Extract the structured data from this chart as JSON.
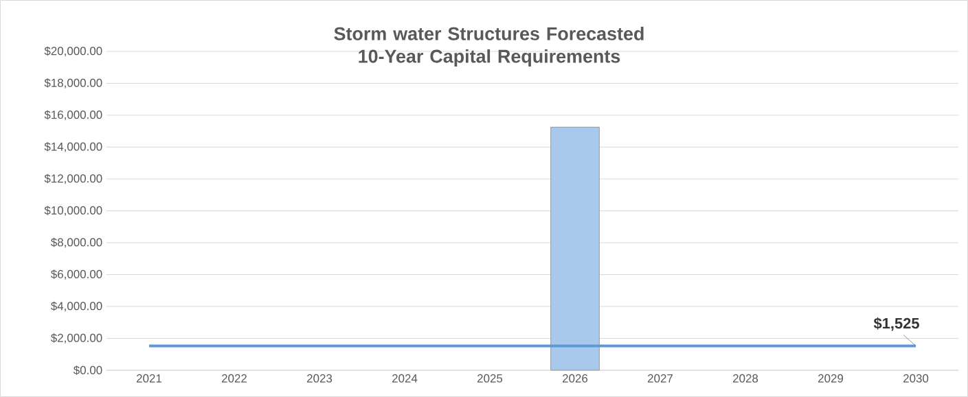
{
  "chart_data": {
    "type": "bar",
    "title": "Storm water Structures Forecasted 10-Year Capital Requirements",
    "categories": [
      "2021",
      "2022",
      "2023",
      "2024",
      "2025",
      "2026",
      "2027",
      "2028",
      "2029",
      "2030"
    ],
    "series": [
      {
        "color": "#a9c9ec",
        "values": [
          null,
          null,
          null,
          null,
          null,
          15250,
          null,
          null,
          null,
          null
        ]
      },
      {
        "type": "line",
        "color": "#5b9bd5",
        "values": [
          1525,
          1525,
          1525,
          1525,
          1525,
          1525,
          1525,
          1525,
          1525,
          1525
        ]
      }
    ],
    "ylim": [
      0,
      20000
    ],
    "yticks": [
      {
        "value": 0,
        "label": "$0.00"
      },
      {
        "value": 2000,
        "label": "$2,000.00"
      },
      {
        "value": 4000,
        "label": "$4,000.00"
      },
      {
        "value": 6000,
        "label": "$6,000.00"
      },
      {
        "value": 8000,
        "label": "$8,000.00"
      },
      {
        "value": 10000,
        "label": "$10,000.00"
      },
      {
        "value": 12000,
        "label": "$12,000.00"
      },
      {
        "value": 14000,
        "label": "$14,000.00"
      },
      {
        "value": 16000,
        "label": "$16,000.00"
      },
      {
        "value": 18000,
        "label": "$18,000.00"
      },
      {
        "value": 20000,
        "label": "$20,000.00"
      }
    ],
    "annotations": [
      {
        "text": "$1,525",
        "x": "2030",
        "y": 1525
      }
    ],
    "grid": "y",
    "marker": "none"
  }
}
